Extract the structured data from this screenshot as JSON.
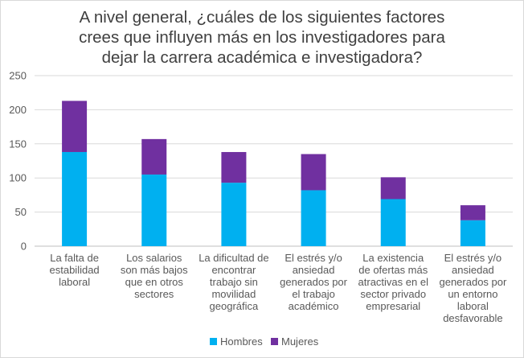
{
  "chart_data": {
    "type": "bar",
    "stacked": true,
    "title_lines": [
      "A nivel general, ¿cuáles de los siguientes factores",
      "crees que influyen más en los investigadores para",
      "dejar la carrera académica e investigadora?"
    ],
    "categories": [
      [
        "La falta de",
        "estabilidad",
        "laboral"
      ],
      [
        "Los salarios",
        "son más bajos",
        "que en otros",
        "sectores"
      ],
      [
        "La dificultad de",
        "encontrar",
        "trabajo sin",
        "movilidad",
        "geográfica"
      ],
      [
        "El estrés y/o",
        "ansiedad",
        "generados por",
        "el trabajo",
        "académico"
      ],
      [
        "La existencia",
        "de ofertas más",
        "atractivas en el",
        "sector privado",
        "empresarial"
      ],
      [
        "El estrés y/o",
        "ansiedad",
        "generados por",
        "un entorno",
        "laboral",
        "desfavorable"
      ]
    ],
    "series": [
      {
        "name": "Hombres",
        "color": "#00b0f0",
        "values": [
          138,
          105,
          93,
          82,
          69,
          38
        ]
      },
      {
        "name": "Mujeres",
        "color": "#7030a0",
        "values": [
          75,
          52,
          45,
          53,
          32,
          22
        ]
      }
    ],
    "ylim": [
      0,
      250
    ],
    "yticks": [
      0,
      50,
      100,
      150,
      200,
      250
    ],
    "grid": true,
    "legend": "bottom"
  }
}
